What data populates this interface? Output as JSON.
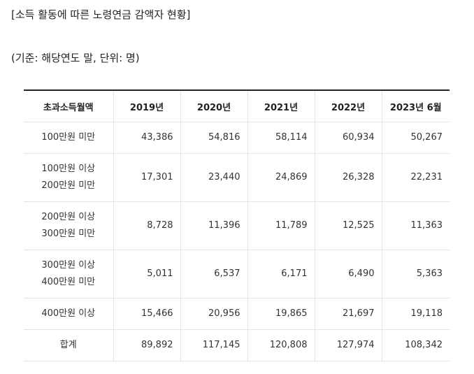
{
  "title": "[소득 활동에 따른 노령연금 감액자 현황]",
  "subtitle": "(기준: 해당연도 말, 단위: 명)",
  "table": {
    "headers": [
      "초과소득월액",
      "2019년",
      "2020년",
      "2021년",
      "2022년",
      "2023년 6월"
    ],
    "rows": [
      {
        "label": [
          "100만원 미만"
        ],
        "values": [
          "43,386",
          "54,816",
          "58,114",
          "60,934",
          "50,267"
        ]
      },
      {
        "label": [
          "100만원 이상",
          "200만원 미만"
        ],
        "values": [
          "17,301",
          "23,440",
          "24,869",
          "26,328",
          "22,231"
        ]
      },
      {
        "label": [
          "200만원 이상",
          "300만원 미만"
        ],
        "values": [
          "8,728",
          "11,396",
          "11,789",
          "12,525",
          "11,363"
        ]
      },
      {
        "label": [
          "300만원 이상",
          "400만원 미만"
        ],
        "values": [
          "5,011",
          "6,537",
          "6,171",
          "6,490",
          "5,363"
        ]
      },
      {
        "label": [
          "400만원 이상"
        ],
        "values": [
          "15,466",
          "20,956",
          "19,865",
          "21,697",
          "19,118"
        ]
      },
      {
        "label": [
          "합계"
        ],
        "values": [
          "89,892",
          "117,145",
          "120,808",
          "127,974",
          "108,342"
        ]
      }
    ]
  }
}
